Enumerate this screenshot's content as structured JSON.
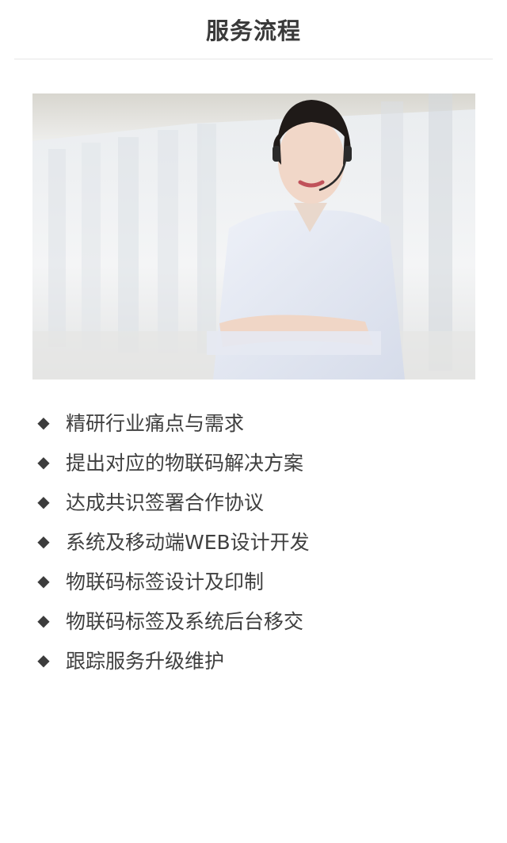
{
  "header": {
    "title": "服务流程"
  },
  "photo": {
    "icon": "customer-service-agent-photo"
  },
  "steps": {
    "bullet_icon": "diamond-bullet-icon",
    "items": [
      {
        "label": "精研行业痛点与需求"
      },
      {
        "label": "提出对应的物联码解决方案"
      },
      {
        "label": "达成共识签署合作协议"
      },
      {
        "label": "系统及移动端WEB设计开发"
      },
      {
        "label": "物联码标签设计及印制"
      },
      {
        "label": "物联码标签及系统后台移交"
      },
      {
        "label": "跟踪服务升级维护"
      }
    ]
  }
}
